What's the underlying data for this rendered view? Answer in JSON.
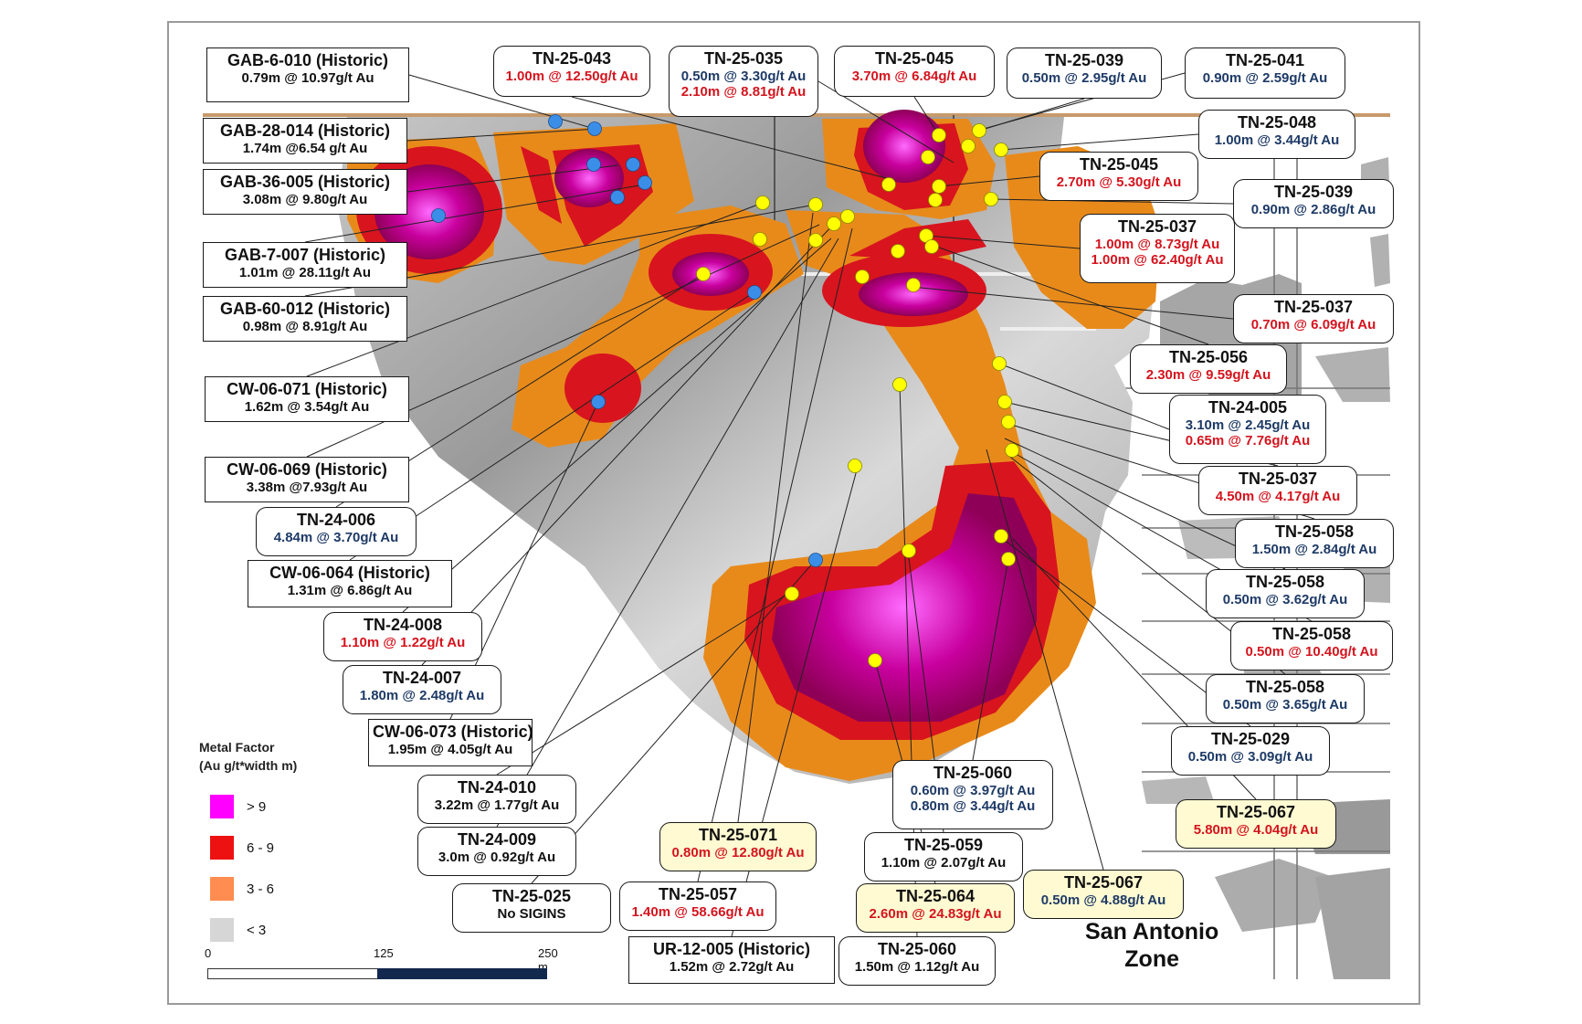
{
  "zone_title": [
    "San Antonio",
    "Zone"
  ],
  "legend": {
    "title_line1": "Metal Factor",
    "title_line2": "(Au g/t*width m)",
    "classes": [
      {
        "label": "> 9",
        "color": "#ff00ff"
      },
      {
        "label": "6 - 9",
        "color": "#ee1111"
      },
      {
        "label": "3 - 6",
        "color": "#ff8c50"
      },
      {
        "label": "< 3",
        "color": "#d6d6d6"
      }
    ]
  },
  "scale_bar": {
    "ticks": [
      "0",
      "125",
      "250 m"
    ]
  },
  "colors": {
    "hole_new": "#ffff00",
    "hole_historic": "#3a8ee8",
    "text_blue": "#1e3a66",
    "text_red": "#d4141e"
  },
  "labels": [
    {
      "id": "gab-6-010",
      "title": "GAB-6-010 (Historic)",
      "lines": [
        {
          "text": "0.79m @ 10.97g/t Au",
          "color": "black"
        }
      ]
    },
    {
      "id": "tn-25-043",
      "title": "TN-25-043",
      "lines": [
        {
          "text": "1.00m @ 12.50g/t Au",
          "color": "red"
        }
      ]
    },
    {
      "id": "tn-25-035",
      "title": "TN-25-035",
      "lines": [
        {
          "text": "0.50m @ 3.30g/t Au",
          "color": "blue"
        },
        {
          "text": "2.10m @ 8.81g/t Au",
          "color": "red"
        }
      ]
    },
    {
      "id": "tn-25-045-a",
      "title": "TN-25-045",
      "lines": [
        {
          "text": "3.70m @ 6.84g/t Au",
          "color": "red"
        }
      ]
    },
    {
      "id": "tn-25-039-a",
      "title": "TN-25-039",
      "lines": [
        {
          "text": "0.50m @ 2.95g/t Au",
          "color": "blue"
        }
      ]
    },
    {
      "id": "tn-25-041",
      "title": "TN-25-041",
      "lines": [
        {
          "text": "0.90m @ 2.59g/t Au",
          "color": "blue"
        }
      ]
    },
    {
      "id": "gab-28-014",
      "title": "GAB-28-014 (Historic)",
      "lines": [
        {
          "text": "1.74m @6.54 g/t Au",
          "color": "black"
        }
      ]
    },
    {
      "id": "tn-25-048",
      "title": "TN-25-048",
      "lines": [
        {
          "text": "1.00m @ 3.44g/t Au",
          "color": "blue"
        }
      ]
    },
    {
      "id": "gab-36-005",
      "title": "GAB-36-005 (Historic)",
      "lines": [
        {
          "text": "3.08m @ 9.80g/t Au",
          "color": "black"
        }
      ]
    },
    {
      "id": "tn-25-045-b",
      "title": "TN-25-045",
      "lines": [
        {
          "text": "2.70m @ 5.30g/t Au",
          "color": "red"
        }
      ]
    },
    {
      "id": "tn-25-039-b",
      "title": "TN-25-039",
      "lines": [
        {
          "text": "0.90m @ 2.86g/t Au",
          "color": "blue"
        }
      ]
    },
    {
      "id": "tn-25-037-a",
      "title": "TN-25-037",
      "lines": [
        {
          "text": "1.00m @ 8.73g/t Au",
          "color": "red"
        },
        {
          "text": "1.00m @ 62.40g/t Au",
          "color": "red"
        }
      ]
    },
    {
      "id": "gab-7-007",
      "title": "GAB-7-007 (Historic)",
      "lines": [
        {
          "text": "1.01m @ 28.11g/t Au",
          "color": "black"
        }
      ]
    },
    {
      "id": "gab-60-012",
      "title": "GAB-60-012 (Historic)",
      "lines": [
        {
          "text": "0.98m @ 8.91g/t Au",
          "color": "black"
        }
      ]
    },
    {
      "id": "tn-25-037-b",
      "title": "TN-25-037",
      "lines": [
        {
          "text": "0.70m @ 6.09g/t Au",
          "color": "red"
        }
      ]
    },
    {
      "id": "tn-25-056",
      "title": "TN-25-056",
      "lines": [
        {
          "text": "2.30m @ 9.59g/t Au",
          "color": "red"
        }
      ]
    },
    {
      "id": "cw-06-071",
      "title": "CW-06-071 (Historic)",
      "lines": [
        {
          "text": "1.62m @ 3.54g/t Au",
          "color": "black"
        }
      ]
    },
    {
      "id": "tn-24-005",
      "title": "TN-24-005",
      "lines": [
        {
          "text": "3.10m @ 2.45g/t Au",
          "color": "blue"
        },
        {
          "text": "0.65m @ 7.76g/t Au",
          "color": "red"
        }
      ]
    },
    {
      "id": "cw-06-069",
      "title": "CW-06-069 (Historic)",
      "lines": [
        {
          "text": "3.38m @7.93g/t Au",
          "color": "black"
        }
      ]
    },
    {
      "id": "tn-25-037-c",
      "title": "TN-25-037",
      "lines": [
        {
          "text": "4.50m @ 4.17g/t Au",
          "color": "red"
        }
      ]
    },
    {
      "id": "tn-24-006",
      "title": "TN-24-006",
      "lines": [
        {
          "text": "4.84m @ 3.70g/t Au",
          "color": "blue"
        }
      ]
    },
    {
      "id": "tn-25-058-a",
      "title": "TN-25-058",
      "lines": [
        {
          "text": "1.50m @ 2.84g/t Au",
          "color": "blue"
        }
      ]
    },
    {
      "id": "cw-06-064",
      "title": "CW-06-064 (Historic)",
      "lines": [
        {
          "text": "1.31m @ 6.86g/t Au",
          "color": "black"
        }
      ]
    },
    {
      "id": "tn-25-058-b",
      "title": "TN-25-058",
      "lines": [
        {
          "text": "0.50m @ 3.62g/t Au",
          "color": "blue"
        }
      ]
    },
    {
      "id": "tn-24-008",
      "title": "TN-24-008",
      "lines": [
        {
          "text": "1.10m @ 1.22g/t Au",
          "color": "red"
        }
      ]
    },
    {
      "id": "tn-25-058-c",
      "title": "TN-25-058",
      "lines": [
        {
          "text": "0.50m @ 10.40g/t Au",
          "color": "red"
        }
      ]
    },
    {
      "id": "tn-24-007",
      "title": "TN-24-007",
      "lines": [
        {
          "text": "1.80m @ 2.48g/t Au",
          "color": "blue"
        }
      ]
    },
    {
      "id": "tn-25-058-d",
      "title": "TN-25-058",
      "lines": [
        {
          "text": "0.50m @ 3.65g/t Au",
          "color": "blue"
        }
      ]
    },
    {
      "id": "cw-06-073",
      "title": "CW-06-073 (Historic)",
      "lines": [
        {
          "text": "1.95m @ 4.05g/t Au",
          "color": "black"
        }
      ]
    },
    {
      "id": "tn-25-029",
      "title": "TN-25-029",
      "lines": [
        {
          "text": "0.50m @ 3.09g/t Au",
          "color": "blue"
        }
      ]
    },
    {
      "id": "tn-25-060-a",
      "title": "TN-25-060",
      "lines": [
        {
          "text": "0.60m @ 3.97g/t Au",
          "color": "blue"
        },
        {
          "text": "0.80m @ 3.44g/t Au",
          "color": "blue"
        }
      ]
    },
    {
      "id": "tn-24-010",
      "title": "TN-24-010",
      "lines": [
        {
          "text": "3.22m @ 1.77g/t Au",
          "color": "black"
        }
      ]
    },
    {
      "id": "tn-25-067-a",
      "title": "TN-25-067",
      "lines": [
        {
          "text": "5.80m @ 4.04g/t Au",
          "color": "red"
        }
      ]
    },
    {
      "id": "tn-25-071",
      "title": "TN-25-071",
      "lines": [
        {
          "text": "0.80m @ 12.80g/t Au",
          "color": "red"
        }
      ]
    },
    {
      "id": "tn-24-009",
      "title": "TN-24-009",
      "lines": [
        {
          "text": "3.0m @ 0.92g/t Au",
          "color": "black"
        }
      ]
    },
    {
      "id": "tn-25-059",
      "title": "TN-25-059",
      "lines": [
        {
          "text": "1.10m @ 2.07g/t Au",
          "color": "black"
        }
      ]
    },
    {
      "id": "tn-25-025",
      "title": "TN-25-025",
      "lines": [
        {
          "text": "No SIGINS",
          "color": "black"
        }
      ]
    },
    {
      "id": "tn-25-057",
      "title": "TN-25-057",
      "lines": [
        {
          "text": "1.40m @ 58.66g/t Au",
          "color": "red"
        }
      ]
    },
    {
      "id": "tn-25-064",
      "title": "TN-25-064",
      "lines": [
        {
          "text": "2.60m @ 24.83g/t Au",
          "color": "red"
        }
      ]
    },
    {
      "id": "tn-25-067-b",
      "title": "TN-25-067",
      "lines": [
        {
          "text": "0.50m @ 4.88g/t Au",
          "color": "blue"
        }
      ]
    },
    {
      "id": "ur-12-005",
      "title": "UR-12-005 (Historic)",
      "lines": [
        {
          "text": "1.52m @ 2.72g/t Au",
          "color": "black"
        }
      ]
    },
    {
      "id": "tn-25-060-b",
      "title": "TN-25-060",
      "lines": [
        {
          "text": "1.50m @ 1.12g/t Au",
          "color": "black"
        }
      ]
    }
  ]
}
